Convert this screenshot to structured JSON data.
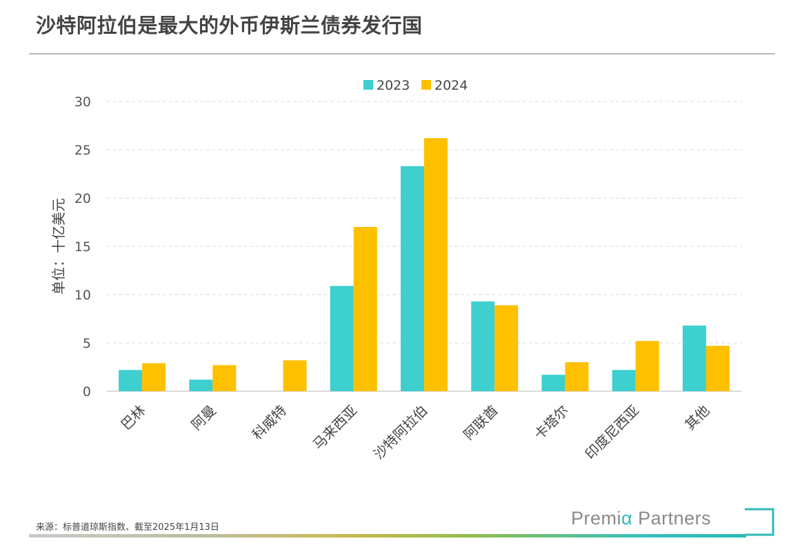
{
  "page": {
    "title": "沙特阿拉伯是最大的外币伊斯兰债券发行国",
    "source": "来源：标普道琼斯指数、截至2025年1月13日",
    "brand": "Premia Partners",
    "brand_parts": {
      "pre": "Premi",
      "alpha": "α",
      "post": " Partners"
    },
    "brand_alpha_color": "#2bb9b7"
  },
  "chart_data": {
    "type": "bar",
    "categories": [
      "巴林",
      "阿曼",
      "科威特",
      "马来西亚",
      "沙特阿拉伯",
      "阿联酋",
      "卡塔尔",
      "印度尼西亚",
      "其他"
    ],
    "series": [
      {
        "name": "2023",
        "color": "#3ecfcf",
        "values": [
          2.2,
          1.2,
          0,
          10.9,
          23.3,
          9.3,
          1.7,
          2.2,
          6.8
        ]
      },
      {
        "name": "2024",
        "color": "#ffc000",
        "values": [
          2.9,
          2.7,
          3.2,
          17.0,
          26.2,
          8.9,
          3.0,
          5.2,
          4.7
        ]
      }
    ],
    "title": "",
    "xlabel": "",
    "ylabel": "单位：十亿美元",
    "ylim": [
      0,
      30
    ],
    "yticks": [
      0,
      5,
      10,
      15,
      20,
      25,
      30
    ],
    "grid": true,
    "legend": "top-center"
  }
}
